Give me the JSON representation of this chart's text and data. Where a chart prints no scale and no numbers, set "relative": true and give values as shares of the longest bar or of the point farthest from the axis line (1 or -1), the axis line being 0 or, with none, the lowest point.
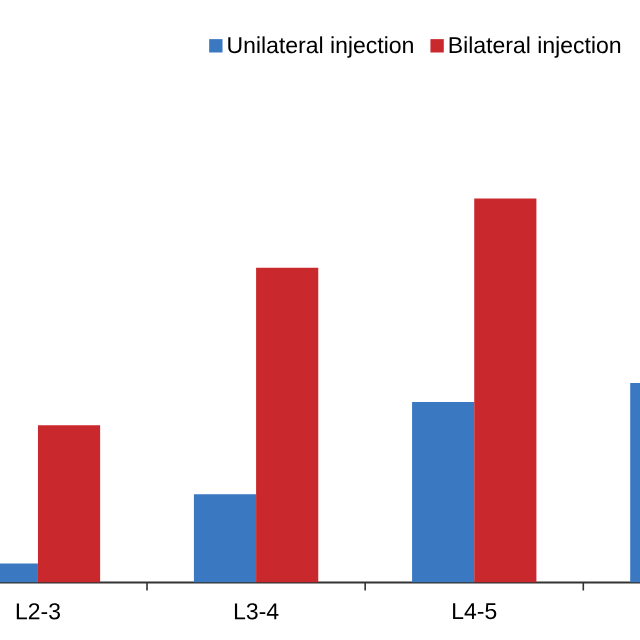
{
  "chart_data": {
    "type": "bar",
    "relative": true,
    "categories": [
      "L2-3",
      "L3-4",
      "L4-5",
      null
    ],
    "series": [
      {
        "name": "Unilateral injection",
        "color": "#3a78c2",
        "values": [
          0.05,
          0.23,
          0.47,
          0.52
        ]
      },
      {
        "name": "Bilateral injection",
        "color": "#c9282c",
        "values": [
          0.41,
          0.82,
          1.0,
          null
        ]
      }
    ],
    "legend": "top right"
  }
}
